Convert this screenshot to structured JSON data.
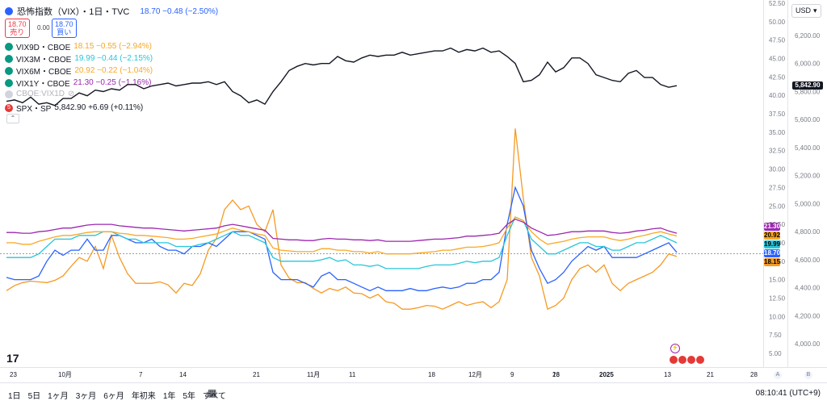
{
  "header": {
    "title": "恐怖指数（VIX）・1日・TVC",
    "quote": "18.70 −0.48 (−2.50%)",
    "sell_price": "18.70",
    "sell_label": "売り",
    "spread": "0.00",
    "buy_price": "18.70",
    "buy_label": "買い",
    "currency": "USD"
  },
  "legends": [
    {
      "label": "VIX9D・CBOE",
      "value": "18.15 −0.55 (−2.94%)",
      "color": "#f5a623"
    },
    {
      "label": "VIX3M・CBOE",
      "value": "19.99 −0.44 (−2.15%)",
      "color": "#26c6da"
    },
    {
      "label": "VIX6M・CBOE",
      "value": "20.92 −0.22 (−1.04%)",
      "color": "#f9a825"
    },
    {
      "label": "VIX1Y・CBOE",
      "value": "21.30 −0.25 (−1.16%)",
      "color": "#9c27b0"
    }
  ],
  "legend_hidden": "CBOE:VIX1D",
  "legend_spx": {
    "label": "SPX・SP",
    "value": "5,842.90 +6.69 (+0.11%)"
  },
  "toolbar": {
    "periods": [
      "1日",
      "5日",
      "1ヶ月",
      "3ヶ月",
      "6ヶ月",
      "年初来",
      "1年",
      "5年",
      "すべて"
    ],
    "time": "08:10:41 (UTC+9)"
  },
  "axis_badges": {
    "a": "A",
    "b": "B"
  },
  "chart_data": {
    "type": "line",
    "x_ticks": [
      "23",
      "10月",
      "7",
      "14",
      "21",
      "11月",
      "11",
      "18",
      "12月",
      "9",
      "16",
      "23",
      "2025",
      "13",
      "21",
      "28"
    ],
    "left_axis": {
      "ticks": [
        "52.50",
        "50.00",
        "47.50",
        "45.00",
        "42.50",
        "40.00",
        "37.50",
        "35.00",
        "32.50",
        "30.00",
        "27.50",
        "25.00",
        "22.50",
        "20.00",
        "17.50",
        "15.00",
        "12.50",
        "10.00",
        "7.50",
        "5.00"
      ],
      "range": [
        5,
        52.5
      ]
    },
    "right_axis": {
      "ticks": [
        "6,200.00",
        "6,000.00",
        "5,800.00",
        "5,600.00",
        "5,400.00",
        "5,200.00",
        "5,000.00",
        "4,800.00",
        "4,600.00",
        "4,400.00",
        "4,200.00",
        "4,000.00"
      ],
      "range": [
        4000,
        6200
      ]
    },
    "series": [
      {
        "name": "SPX",
        "axis": "right",
        "color": "#131722",
        "values": [
          5730,
          5740,
          5720,
          5760,
          5710,
          5720,
          5700,
          5750,
          5750,
          5790,
          5770,
          5810,
          5800,
          5820,
          5810,
          5850,
          5850,
          5820,
          5840,
          5850,
          5860,
          5840,
          5850,
          5860,
          5860,
          5870,
          5850,
          5870,
          5800,
          5770,
          5720,
          5740,
          5710,
          5800,
          5870,
          5950,
          5980,
          6000,
          5990,
          6000,
          6000,
          6050,
          6020,
          6010,
          6040,
          6060,
          6050,
          6060,
          6060,
          6080,
          6060,
          6070,
          6080,
          6090,
          6090,
          6110,
          6080,
          6100,
          6090,
          6110,
          6080,
          6090,
          6050,
          6000,
          5870,
          5880,
          5920,
          6010,
          5940,
          5970,
          6040,
          6040,
          6000,
          5920,
          5900,
          5880,
          5870,
          5930,
          5950,
          5900,
          5900,
          5850,
          5830,
          5842
        ]
      },
      {
        "name": "VIX9D",
        "axis": "left",
        "color": "#f59a23",
        "values": [
          13.5,
          14.2,
          14.6,
          14.8,
          14.7,
          14.6,
          14.9,
          15.5,
          16.8,
          18.0,
          17.5,
          19.5,
          16.5,
          21.0,
          18.0,
          15.8,
          14.5,
          14.5,
          14.5,
          14.7,
          14.3,
          13.2,
          14.5,
          14.2,
          15.8,
          19.0,
          20.6,
          24.5,
          25.8,
          24.5,
          25.0,
          22.5,
          21.5,
          24.5,
          17.0,
          15.2,
          14.6,
          14.6,
          13.8,
          13.2,
          13.8,
          13.5,
          14.0,
          13.2,
          13.1,
          12.5,
          13.0,
          12.0,
          11.8,
          11.0,
          11.0,
          11.2,
          11.5,
          11.4,
          11.0,
          11.5,
          12.0,
          11.5,
          11.8,
          12.0,
          11.2,
          12.0,
          15.0,
          35.5,
          26.0,
          18.0,
          15.5,
          11.0,
          11.5,
          12.5,
          15.0,
          16.5,
          17.0,
          16.0,
          17.0,
          14.5,
          13.5,
          14.5,
          15.0,
          15.5,
          16.0,
          17.0,
          18.5,
          18.15
        ]
      },
      {
        "name": "VIX",
        "axis": "left",
        "color": "#2962ff",
        "values": [
          15.3,
          15.0,
          15.0,
          15.0,
          15.5,
          17.5,
          19.0,
          18.3,
          19.0,
          19.0,
          20.5,
          19.0,
          19.0,
          21.0,
          21.0,
          20.5,
          20.0,
          20.0,
          20.5,
          19.5,
          19.0,
          19.0,
          18.5,
          19.5,
          19.5,
          20.0,
          19.5,
          20.5,
          21.5,
          21.5,
          21.5,
          21.0,
          20.5,
          16.0,
          15.0,
          15.0,
          15.0,
          14.5,
          14.0,
          15.5,
          16.0,
          15.0,
          15.0,
          14.5,
          14.0,
          13.5,
          14.0,
          13.5,
          13.5,
          13.5,
          13.8,
          13.5,
          13.5,
          13.8,
          14.0,
          13.8,
          14.0,
          14.5,
          14.5,
          15.0,
          15.0,
          16.0,
          22.5,
          27.5,
          25.0,
          19.0,
          16.5,
          14.5,
          15.0,
          16.0,
          17.5,
          18.5,
          19.5,
          19.0,
          19.5,
          18.0,
          18.0,
          18.0,
          18.0,
          18.5,
          19.0,
          19.5,
          20.0,
          18.7
        ]
      },
      {
        "name": "VIX3M",
        "axis": "left",
        "color": "#26c6da",
        "values": [
          18.0,
          18.0,
          18.0,
          18.0,
          18.5,
          19.5,
          20.5,
          20.5,
          20.5,
          21.0,
          21.0,
          21.0,
          21.5,
          21.5,
          21.0,
          20.5,
          20.5,
          20.0,
          20.0,
          20.0,
          20.0,
          19.5,
          19.5,
          19.5,
          19.8,
          20.0,
          20.5,
          21.0,
          21.5,
          21.0,
          21.0,
          20.5,
          20.0,
          18.0,
          17.5,
          17.5,
          17.5,
          17.5,
          17.5,
          17.7,
          18.0,
          17.5,
          17.7,
          17.0,
          17.0,
          16.8,
          17.0,
          16.5,
          16.5,
          16.5,
          16.5,
          16.5,
          16.8,
          17.0,
          17.0,
          17.0,
          17.2,
          17.5,
          17.3,
          17.5,
          17.5,
          18.0,
          21.0,
          23.5,
          23.0,
          20.5,
          19.5,
          18.5,
          18.5,
          19.0,
          19.5,
          20.0,
          20.0,
          19.5,
          19.5,
          19.0,
          19.0,
          19.5,
          20.0,
          20.0,
          20.5,
          21.0,
          20.5,
          19.99
        ]
      },
      {
        "name": "VIX6M",
        "axis": "left",
        "color": "#f9a825",
        "values": [
          20.0,
          20.0,
          19.8,
          19.8,
          20.2,
          20.5,
          20.8,
          21.0,
          21.0,
          21.2,
          21.4,
          21.5,
          21.5,
          21.5,
          21.3,
          21.2,
          21.0,
          21.0,
          20.9,
          20.8,
          20.7,
          20.5,
          20.5,
          20.6,
          20.8,
          21.0,
          21.2,
          21.6,
          22.0,
          21.7,
          21.5,
          21.2,
          21.0,
          19.3,
          19.0,
          18.9,
          18.8,
          18.8,
          18.8,
          19.2,
          19.2,
          19.0,
          19.0,
          18.8,
          18.8,
          18.6,
          18.8,
          18.5,
          18.5,
          18.5,
          18.5,
          18.6,
          18.7,
          18.8,
          19.0,
          19.0,
          19.2,
          19.4,
          19.4,
          19.5,
          19.7,
          20.0,
          22.0,
          23.5,
          23.0,
          21.5,
          20.5,
          19.8,
          20.0,
          20.2,
          20.5,
          20.7,
          20.8,
          20.8,
          20.8,
          20.5,
          20.3,
          20.5,
          20.8,
          21.0,
          21.3,
          21.5,
          21.2,
          20.92
        ]
      },
      {
        "name": "VIX1Y",
        "axis": "left",
        "color": "#9c27b0",
        "values": [
          21.4,
          21.4,
          21.3,
          21.3,
          21.5,
          21.6,
          21.8,
          22.0,
          22.0,
          22.2,
          22.4,
          22.5,
          22.5,
          22.5,
          22.3,
          22.2,
          22.1,
          22.0,
          22.0,
          21.9,
          21.8,
          21.7,
          21.6,
          21.7,
          21.8,
          21.9,
          22.0,
          22.3,
          22.5,
          22.3,
          22.1,
          21.9,
          21.7,
          20.6,
          20.5,
          20.4,
          20.4,
          20.3,
          20.3,
          20.5,
          20.6,
          20.5,
          20.5,
          20.4,
          20.4,
          20.3,
          20.4,
          20.2,
          20.2,
          20.2,
          20.2,
          20.3,
          20.4,
          20.5,
          20.5,
          20.6,
          20.7,
          20.9,
          20.9,
          21.0,
          21.1,
          21.3,
          22.5,
          23.2,
          22.8,
          22.0,
          21.5,
          21.0,
          21.1,
          21.3,
          21.5,
          21.5,
          21.6,
          21.6,
          21.6,
          21.4,
          21.3,
          21.4,
          21.6,
          21.7,
          21.9,
          22.0,
          21.6,
          21.3
        ]
      }
    ],
    "price_tags": [
      {
        "value": "21.30",
        "color": "#9c27b0",
        "text": "#fff"
      },
      {
        "value": "20.92",
        "color": "#f9a825",
        "text": "#000"
      },
      {
        "value": "19.99",
        "color": "#26c6da",
        "text": "#000"
      },
      {
        "value": "18.70",
        "color": "#2962ff",
        "text": "#fff"
      },
      {
        "value": "18.15",
        "color": "#f59a23",
        "text": "#000"
      }
    ],
    "spx_tag": "5,842.90",
    "grid": false
  }
}
